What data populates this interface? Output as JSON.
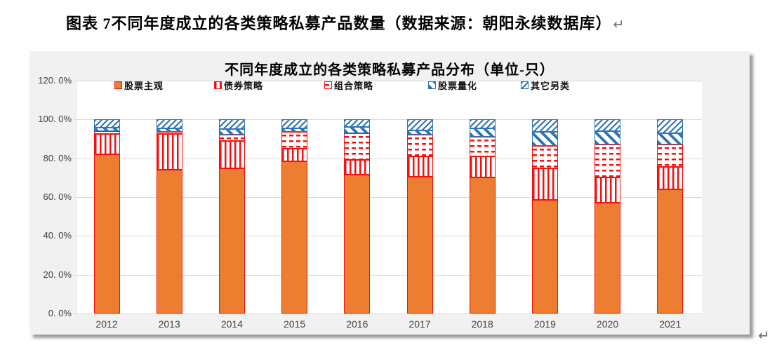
{
  "document": {
    "caption": "图表 7不同年度成立的各类策略私募产品数量（数据来源：朝阳永续数据库）",
    "caption_paragraph_mark": "↵",
    "trailing_paragraph_mark": "↵"
  },
  "chart_data": {
    "type": "bar",
    "stacked": true,
    "title": "不同年度成立的各类策略私募产品分布（单位-只）",
    "categories": [
      "2012",
      "2013",
      "2014",
      "2015",
      "2016",
      "2017",
      "2018",
      "2019",
      "2020",
      "2021"
    ],
    "series": [
      {
        "name": "股票主观",
        "pattern": "solid-orange",
        "values": [
          82,
          74,
          75,
          78.5,
          71.5,
          70.5,
          70,
          58.5,
          57,
          64
        ]
      },
      {
        "name": "债券策略",
        "pattern": "red-vertical-stripes",
        "values": [
          10.5,
          18.5,
          14,
          6.5,
          7.5,
          10.5,
          11,
          16.5,
          13,
          11.5
        ]
      },
      {
        "name": "组合策略",
        "pattern": "red-horizontal-dashes",
        "values": [
          1.5,
          1.2,
          3,
          8.5,
          14,
          11,
          10,
          11.5,
          17,
          11.5
        ]
      },
      {
        "name": "股票量化",
        "pattern": "blue-bold-diagonal",
        "values": [
          1.8,
          1.8,
          3,
          2,
          3,
          2.5,
          4.3,
          7.3,
          6.9,
          6
        ]
      },
      {
        "name": "其它另类",
        "pattern": "blue-fine-diagonal",
        "values": [
          4.2,
          4.5,
          5,
          4.5,
          4,
          5.5,
          4.7,
          6.2,
          6.1,
          7
        ]
      }
    ],
    "y_ticks": [
      "120. 0%",
      "100. 0%",
      "80. 0%",
      "60. 0%",
      "40. 0%",
      "20. 0%",
      "0. 0%"
    ],
    "ylim": [
      0,
      120
    ],
    "unit": "%",
    "grid": true,
    "legend_position": "top-inside",
    "colors": {
      "bar_orange": "#ED7D31",
      "stroke_red": "#F50F0F",
      "stroke_blue": "#2E75B6",
      "chart_bg": "#F1F1F1",
      "gridline": "#D9D9D9",
      "axis_text": "#404040"
    }
  }
}
